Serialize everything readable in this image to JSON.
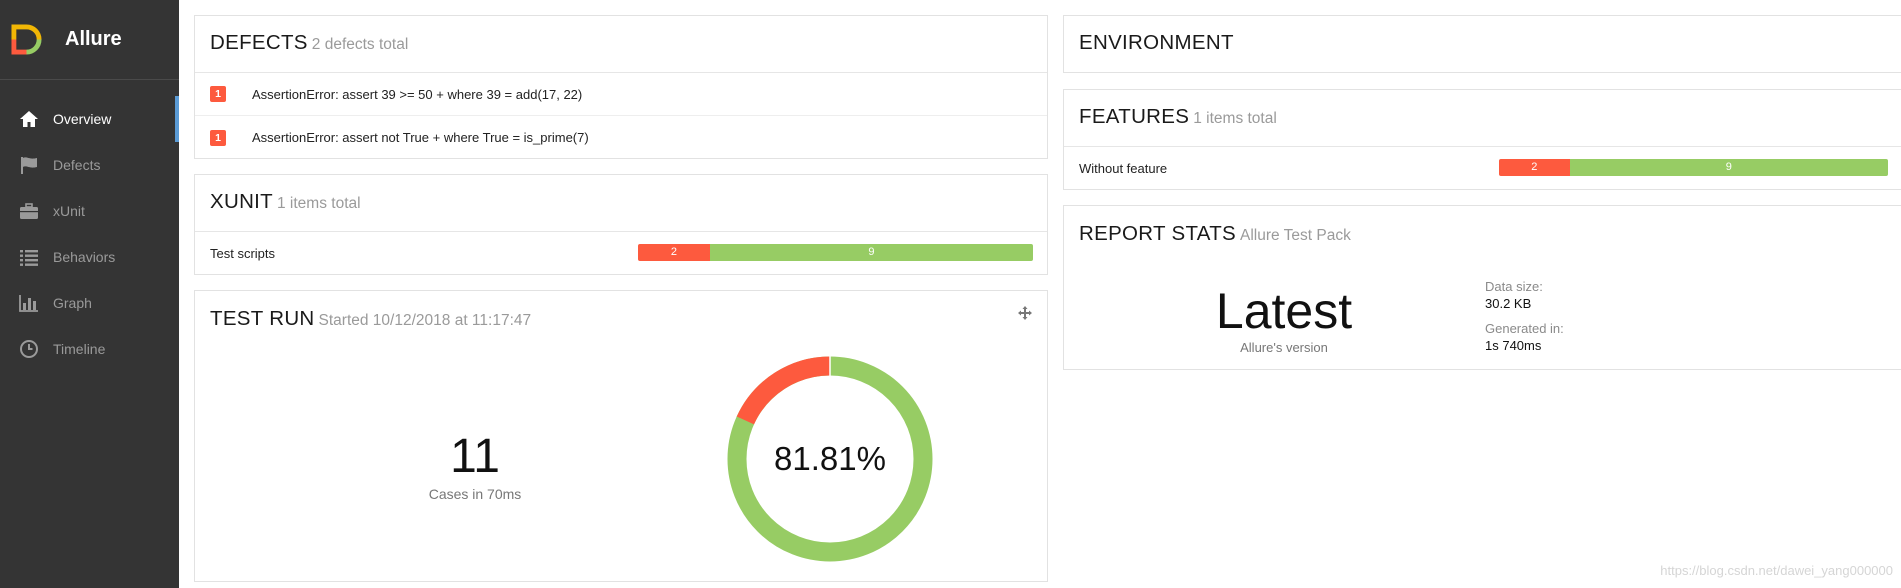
{
  "app": {
    "name": "Allure"
  },
  "colors": {
    "sidebar_bg": "#343434",
    "failed": "#fd5a3e",
    "passed": "#97cc64",
    "accent": "#5b9bd5"
  },
  "sidebar": {
    "items": [
      {
        "label": "Overview",
        "icon": "home-icon",
        "active": true
      },
      {
        "label": "Defects",
        "icon": "flag-icon",
        "active": false
      },
      {
        "label": "xUnit",
        "icon": "briefcase-icon",
        "active": false
      },
      {
        "label": "Behaviors",
        "icon": "list-icon",
        "active": false
      },
      {
        "label": "Graph",
        "icon": "bar-chart-icon",
        "active": false
      },
      {
        "label": "Timeline",
        "icon": "clock-icon",
        "active": false
      }
    ]
  },
  "defects": {
    "title": "DEFECTS",
    "subtitle": "2 defects total",
    "items": [
      {
        "count": "1",
        "message": "AssertionError: assert 39 >= 50 + where 39 = add(17, 22)"
      },
      {
        "count": "1",
        "message": "AssertionError: assert not True + where True = is_prime(7)"
      }
    ]
  },
  "xunit": {
    "title": "XUNIT",
    "subtitle": "1 items total",
    "row": {
      "label": "Test scripts",
      "failed": 2,
      "passed": 9
    }
  },
  "testrun": {
    "title": "TEST RUN",
    "subtitle": "Started 10/12/2018 at 11:17:47",
    "cases": "11",
    "cases_sub": "Cases in 70ms",
    "percent": "81.81%",
    "passed_fraction": 0.8181
  },
  "environment": {
    "title": "ENVIRONMENT"
  },
  "features": {
    "title": "FEATURES",
    "subtitle": "1 items total",
    "row": {
      "label": "Without feature",
      "failed": 2,
      "passed": 9
    }
  },
  "report_stats": {
    "title": "REPORT STATS",
    "subtitle": "Allure Test Pack",
    "version": "Latest",
    "version_sub": "Allure's version",
    "data_size_label": "Data size:",
    "data_size_value": "30.2 KB",
    "generated_label": "Generated in:",
    "generated_value": "1s 740ms"
  },
  "watermark": "https://blog.csdn.net/dawei_yang000000"
}
